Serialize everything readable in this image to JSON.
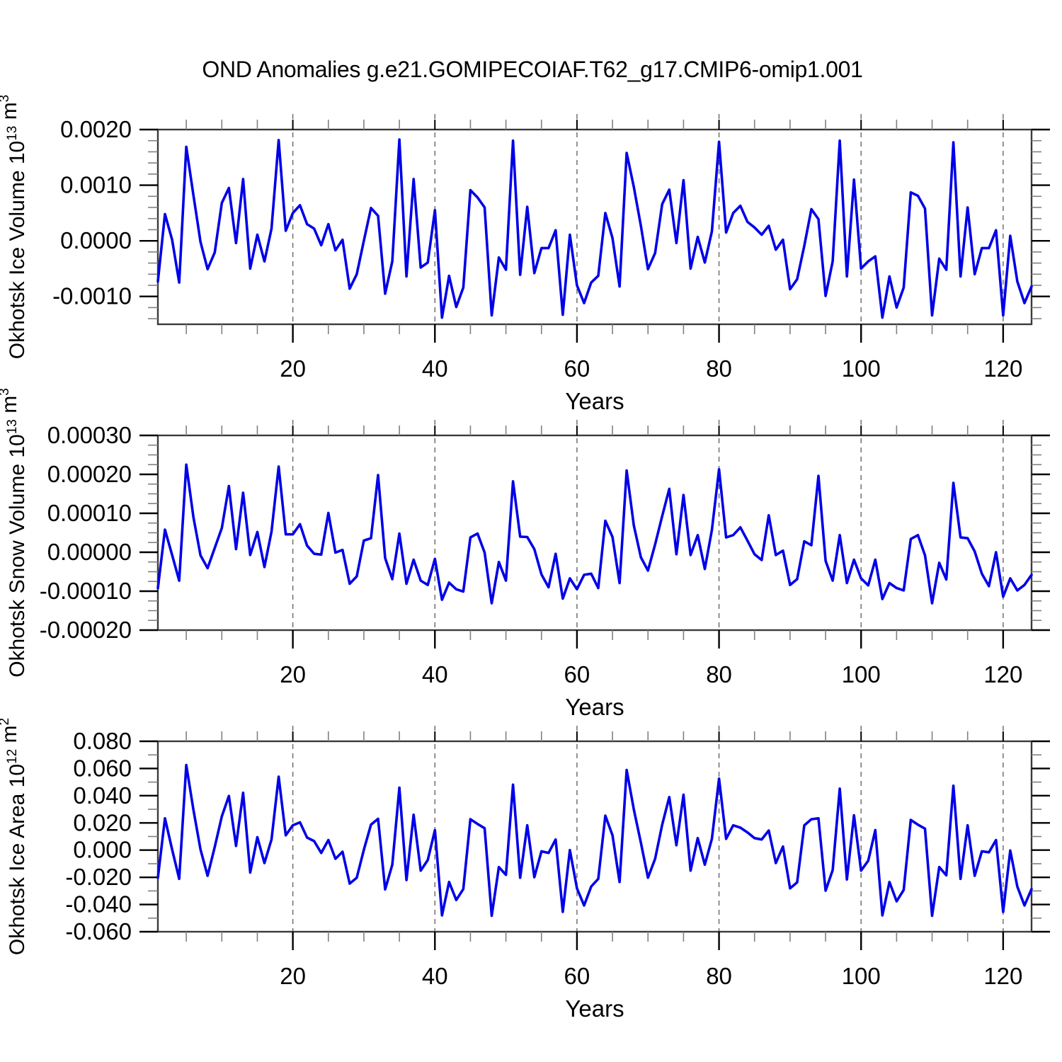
{
  "title": "OND Anomalies g.e21.GOMIPECOIAF.T62_g17.CMIP6-omip1.001",
  "colors": {
    "line": "#0000e8",
    "grid": "#666666",
    "axis_frame": "#3a3a3a",
    "major_tick": "#000000",
    "minor_tick": "#808080",
    "text": "#000000",
    "background": "#ffffff"
  },
  "chart_data": [
    {
      "type": "line",
      "panel": "okhotsk-ice-volume",
      "ylabel": "Okhotsk Ice Volume 10^13 m^3",
      "ylabel_segments": [
        {
          "t": "Okhotsk Ice Volume 10"
        },
        {
          "t": "13",
          "sup": true
        },
        {
          "t": " m"
        },
        {
          "t": "3",
          "sup": true
        }
      ],
      "xlabel": "Years",
      "x_start": 1,
      "x_end": 124,
      "xticks": [
        {
          "v": 20,
          "label": "20"
        },
        {
          "v": 40,
          "label": "40"
        },
        {
          "v": 60,
          "label": "60"
        },
        {
          "v": 80,
          "label": "80"
        },
        {
          "v": 100,
          "label": "100"
        },
        {
          "v": 120,
          "label": "120"
        }
      ],
      "x_minor_step": 5,
      "ylim": [
        -0.0015,
        0.002
      ],
      "yticks": [
        {
          "v": 0.002,
          "label": "0.0020"
        },
        {
          "v": 0.001,
          "label": "0.0010"
        },
        {
          "v": 0.0,
          "label": "0.0000"
        },
        {
          "v": -0.001,
          "label": "-0.0010"
        }
      ],
      "y_minor_step": 0.0002,
      "grid_on": true,
      "values": [
        -0.00073,
        0.00048,
        2e-05,
        -0.00075,
        0.00169,
        0.00082,
        -2e-05,
        -0.00051,
        -0.00021,
        0.00068,
        0.00095,
        -4e-05,
        0.00111,
        -0.0005,
        0.00011,
        -0.00037,
        0.00022,
        0.00181,
        0.00018,
        0.0005,
        0.00064,
        0.0003,
        0.00022,
        -8e-05,
        0.0003,
        -0.00017,
        2e-05,
        -0.00086,
        -0.0006,
        0.0,
        0.00059,
        0.00045,
        -0.00095,
        -0.00037,
        0.00182,
        -0.00064,
        0.00111,
        -0.00048,
        -0.00039,
        0.00055,
        -0.00138,
        -0.00063,
        -0.00119,
        -0.00084,
        0.00091,
        0.00078,
        0.0006,
        -0.00134,
        -0.0003,
        -0.00052,
        0.0018,
        -0.00061,
        0.00061,
        -0.00058,
        -0.00013,
        -0.00013,
        0.00019,
        -0.00133,
        0.00011,
        -0.0008,
        -0.00112,
        -0.00075,
        -0.00063,
        0.0005,
        5e-05,
        -0.00082,
        0.00158,
        0.00097,
        0.00027,
        -0.00051,
        -0.00022,
        0.00066,
        0.00092,
        -4e-05,
        0.00109,
        -0.0005,
        7e-05,
        -0.00039,
        0.00017,
        0.00178,
        0.00015,
        0.0005,
        0.00063,
        0.00034,
        0.00024,
        0.00011,
        0.00027,
        -0.00016,
        2e-05,
        -0.00087,
        -0.00069,
        -9e-05,
        0.00057,
        0.00039,
        -0.00099,
        -0.00037,
        0.0018,
        -0.00064,
        0.0011,
        -0.0005,
        -0.00037,
        -0.00028,
        -0.00138,
        -0.00064,
        -0.0012,
        -0.00084,
        0.00087,
        0.00081,
        0.00058,
        -0.00134,
        -0.00032,
        -0.00052,
        0.00177,
        -0.00064,
        0.0006,
        -0.0006,
        -0.00013,
        -0.00013,
        0.00019,
        -0.00134,
        9e-05,
        -0.00073,
        -0.00112,
        -0.00082
      ]
    },
    {
      "type": "line",
      "panel": "okhotsk-snow-volume",
      "ylabel": "Okhotsk Snow Volume 10^13 m^3",
      "ylabel_segments": [
        {
          "t": "Okhotsk Snow Volume 10"
        },
        {
          "t": "13",
          "sup": true
        },
        {
          "t": " m"
        },
        {
          "t": "3",
          "sup": true
        }
      ],
      "xlabel": "Years",
      "x_start": 1,
      "x_end": 124,
      "xticks": [
        {
          "v": 20,
          "label": "20"
        },
        {
          "v": 40,
          "label": "40"
        },
        {
          "v": 60,
          "label": "60"
        },
        {
          "v": 80,
          "label": "80"
        },
        {
          "v": 100,
          "label": "100"
        },
        {
          "v": 120,
          "label": "120"
        }
      ],
      "x_minor_step": 5,
      "ylim": [
        -0.0002,
        0.0003
      ],
      "yticks": [
        {
          "v": 0.0003,
          "label": "0.00030"
        },
        {
          "v": 0.0002,
          "label": "0.00020"
        },
        {
          "v": 0.0001,
          "label": "0.00010"
        },
        {
          "v": 0.0,
          "label": "0.00000"
        },
        {
          "v": -0.0001,
          "label": "-0.00010"
        },
        {
          "v": -0.0002,
          "label": "-0.00020"
        }
      ],
      "y_minor_step": 2.5e-05,
      "grid_on": true,
      "values": [
        -9.2e-05,
        5.8e-05,
        -7e-06,
        -7.3e-05,
        0.000225,
        9e-05,
        -8e-06,
        -4.1e-05,
        1.1e-05,
        6.2e-05,
        0.00017,
        8e-06,
        0.000153,
        -7e-06,
        5.2e-05,
        -3.8e-05,
        5.3e-05,
        0.00022,
        4.6e-05,
        4.6e-05,
        7.2e-05,
        1.7e-05,
        -4e-06,
        -6e-06,
        0.000101,
        -1e-06,
        6e-06,
        -8.1e-05,
        -6.2e-05,
        3e-05,
        3.6e-05,
        0.000198,
        -1.5e-05,
        -6.9e-05,
        4.8e-05,
        -8.1e-05,
        -1.9e-05,
        -7.3e-05,
        -8.4e-05,
        -1.7e-05,
        -0.000122,
        -7.8e-05,
        -9.5e-05,
        -0.000101,
        3.8e-05,
        4.8e-05,
        -1e-06,
        -0.000131,
        -2.5e-05,
        -7.3e-05,
        0.000182,
        4e-05,
        3.9e-05,
        8e-06,
        -5.7e-05,
        -9e-05,
        -4e-06,
        -0.000119,
        -6.7e-05,
        -9.5e-05,
        -5.8e-05,
        -5.5e-05,
        -9.2e-05,
        8.1e-05,
        3.9e-05,
        -7.9e-05,
        0.00021,
        6.9e-05,
        -1.3e-05,
        -4.7e-05,
        2e-05,
        9.3e-05,
        0.000163,
        -5e-06,
        0.000147,
        -7e-06,
        4.4e-05,
        -4.3e-05,
        5.7e-05,
        0.000213,
        3.8e-05,
        4.4e-05,
        6.4e-05,
        3e-05,
        -5e-06,
        -2e-05,
        9.5e-05,
        -7e-06,
        4e-06,
        -8.4e-05,
        -6.9e-05,
        2.8e-05,
        1.8e-05,
        0.000196,
        -2.2e-05,
        -7.3e-05,
        4.4e-05,
        -7.9e-05,
        -1.9e-05,
        -6.7e-05,
        -8.5e-05,
        -1.9e-05,
        -0.00012,
        -7.9e-05,
        -9.2e-05,
        -9.8e-05,
        3.4e-05,
        4.4e-05,
        -8e-06,
        -0.000131,
        -2.7e-05,
        -7e-05,
        0.000178,
        3.8e-05,
        3.6e-05,
        2e-06,
        -5.5e-05,
        -8.7e-05,
        0.0,
        -0.000114,
        -6.7e-05,
        -9.8e-05,
        -8.4e-05,
        -5.8e-05
      ]
    },
    {
      "type": "line",
      "panel": "okhotsk-ice-area",
      "ylabel": "Okhotsk Ice Area 10^12 m^2",
      "ylabel_segments": [
        {
          "t": "Okhotsk Ice Area 10"
        },
        {
          "t": "12",
          "sup": true
        },
        {
          "t": " m"
        },
        {
          "t": "2",
          "sup": true
        }
      ],
      "xlabel": "Years",
      "x_start": 1,
      "x_end": 124,
      "xticks": [
        {
          "v": 20,
          "label": "20"
        },
        {
          "v": 40,
          "label": "40"
        },
        {
          "v": 60,
          "label": "60"
        },
        {
          "v": 80,
          "label": "80"
        },
        {
          "v": 100,
          "label": "100"
        },
        {
          "v": 120,
          "label": "120"
        }
      ],
      "x_minor_step": 5,
      "ylim": [
        -0.06,
        0.08
      ],
      "yticks": [
        {
          "v": 0.08,
          "label": "0.080"
        },
        {
          "v": 0.06,
          "label": "0.060"
        },
        {
          "v": 0.04,
          "label": "0.040"
        },
        {
          "v": 0.02,
          "label": "0.020"
        },
        {
          "v": 0.0,
          "label": "0.000"
        },
        {
          "v": -0.02,
          "label": "-0.020"
        },
        {
          "v": -0.04,
          "label": "-0.040"
        },
        {
          "v": -0.06,
          "label": "-0.060"
        }
      ],
      "y_minor_step": 0.01,
      "grid_on": true,
      "values": [
        -0.0203,
        0.0234,
        0.0005,
        -0.0211,
        0.0625,
        0.0296,
        0.0005,
        -0.0189,
        0.0023,
        0.0248,
        0.0398,
        0.0031,
        0.0421,
        -0.0165,
        0.0095,
        -0.0095,
        0.0078,
        0.0539,
        0.0109,
        0.0182,
        0.0204,
        0.0092,
        0.0066,
        -0.0021,
        0.0074,
        -0.0064,
        -0.0012,
        -0.0246,
        -0.0203,
        0.0002,
        0.0187,
        0.023,
        -0.0289,
        -0.0107,
        0.0459,
        -0.022,
        0.026,
        -0.0151,
        -0.0073,
        0.0147,
        -0.048,
        -0.0234,
        -0.0367,
        -0.0286,
        0.0227,
        0.0192,
        0.0161,
        -0.0483,
        -0.0125,
        -0.0182,
        0.0481,
        -0.0203,
        0.0182,
        -0.0199,
        -0.0009,
        -0.0021,
        0.0078,
        -0.0454,
        0.0,
        -0.0281,
        -0.0407,
        -0.0268,
        -0.0211,
        0.0253,
        0.0109,
        -0.0234,
        0.0589,
        0.03,
        0.0054,
        -0.0203,
        -0.0064,
        0.0187,
        0.039,
        0.0036,
        0.0407,
        -0.0151,
        0.0088,
        -0.0107,
        0.0083,
        0.0525,
        0.0083,
        0.0182,
        0.0165,
        0.013,
        0.0088,
        0.0078,
        0.0144,
        -0.0095,
        0.0026,
        -0.0281,
        -0.0237,
        0.0182,
        0.0227,
        0.0234,
        -0.0298,
        -0.0147,
        0.0452,
        -0.0216,
        0.0256,
        -0.0151,
        -0.0078,
        0.0147,
        -0.048,
        -0.0234,
        -0.0376,
        -0.0293,
        0.0222,
        0.0187,
        0.0158,
        -0.0483,
        -0.0125,
        -0.0185,
        0.0473,
        -0.0211,
        0.0182,
        -0.0189,
        -0.0009,
        -0.0016,
        0.0074,
        -0.0454,
        -0.0003,
        -0.0268,
        -0.0407,
        -0.0286
      ]
    }
  ]
}
